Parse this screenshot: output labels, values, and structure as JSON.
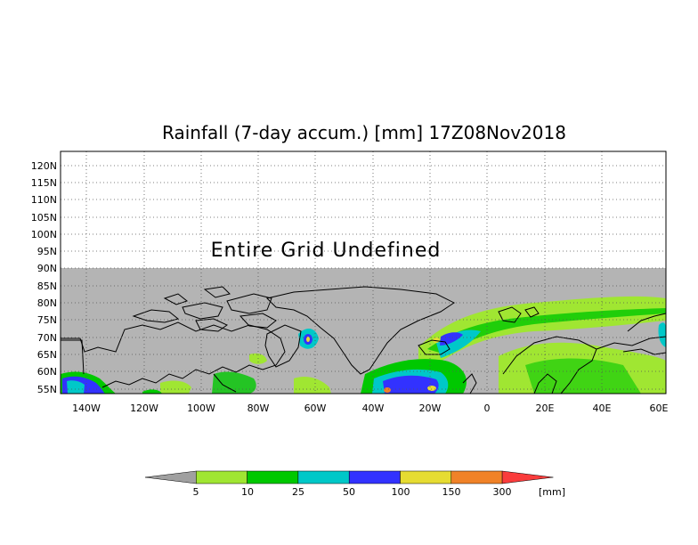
{
  "title": "Rainfall (7-day accum.) [mm] 17Z08Nov2018",
  "undefined_text": "Entire Grid Undefined",
  "lat_labels": [
    "120N",
    "115N",
    "110N",
    "105N",
    "100N",
    "95N",
    "90N",
    "85N",
    "80N",
    "75N",
    "70N",
    "65N",
    "60N",
    "55N"
  ],
  "lon_labels": [
    "140W",
    "120W",
    "100W",
    "80W",
    "60W",
    "40W",
    "20W",
    "0",
    "20E",
    "40E",
    "60E"
  ],
  "colorbar": {
    "colors": [
      "#a0a0a0",
      "#a0e632",
      "#00c800",
      "#00c8c8",
      "#3232ff",
      "#e6dc32",
      "#f08228",
      "#fa3c3c"
    ],
    "labels": [
      "5",
      "10",
      "25",
      "50",
      "100",
      "150",
      "300"
    ],
    "unit": "[mm]"
  },
  "colors": {
    "undefined_gray": "#b4b4b4",
    "green_light": "#a0e632",
    "green": "#00c800",
    "cyan": "#00c8c8",
    "blue": "#3232ff"
  }
}
